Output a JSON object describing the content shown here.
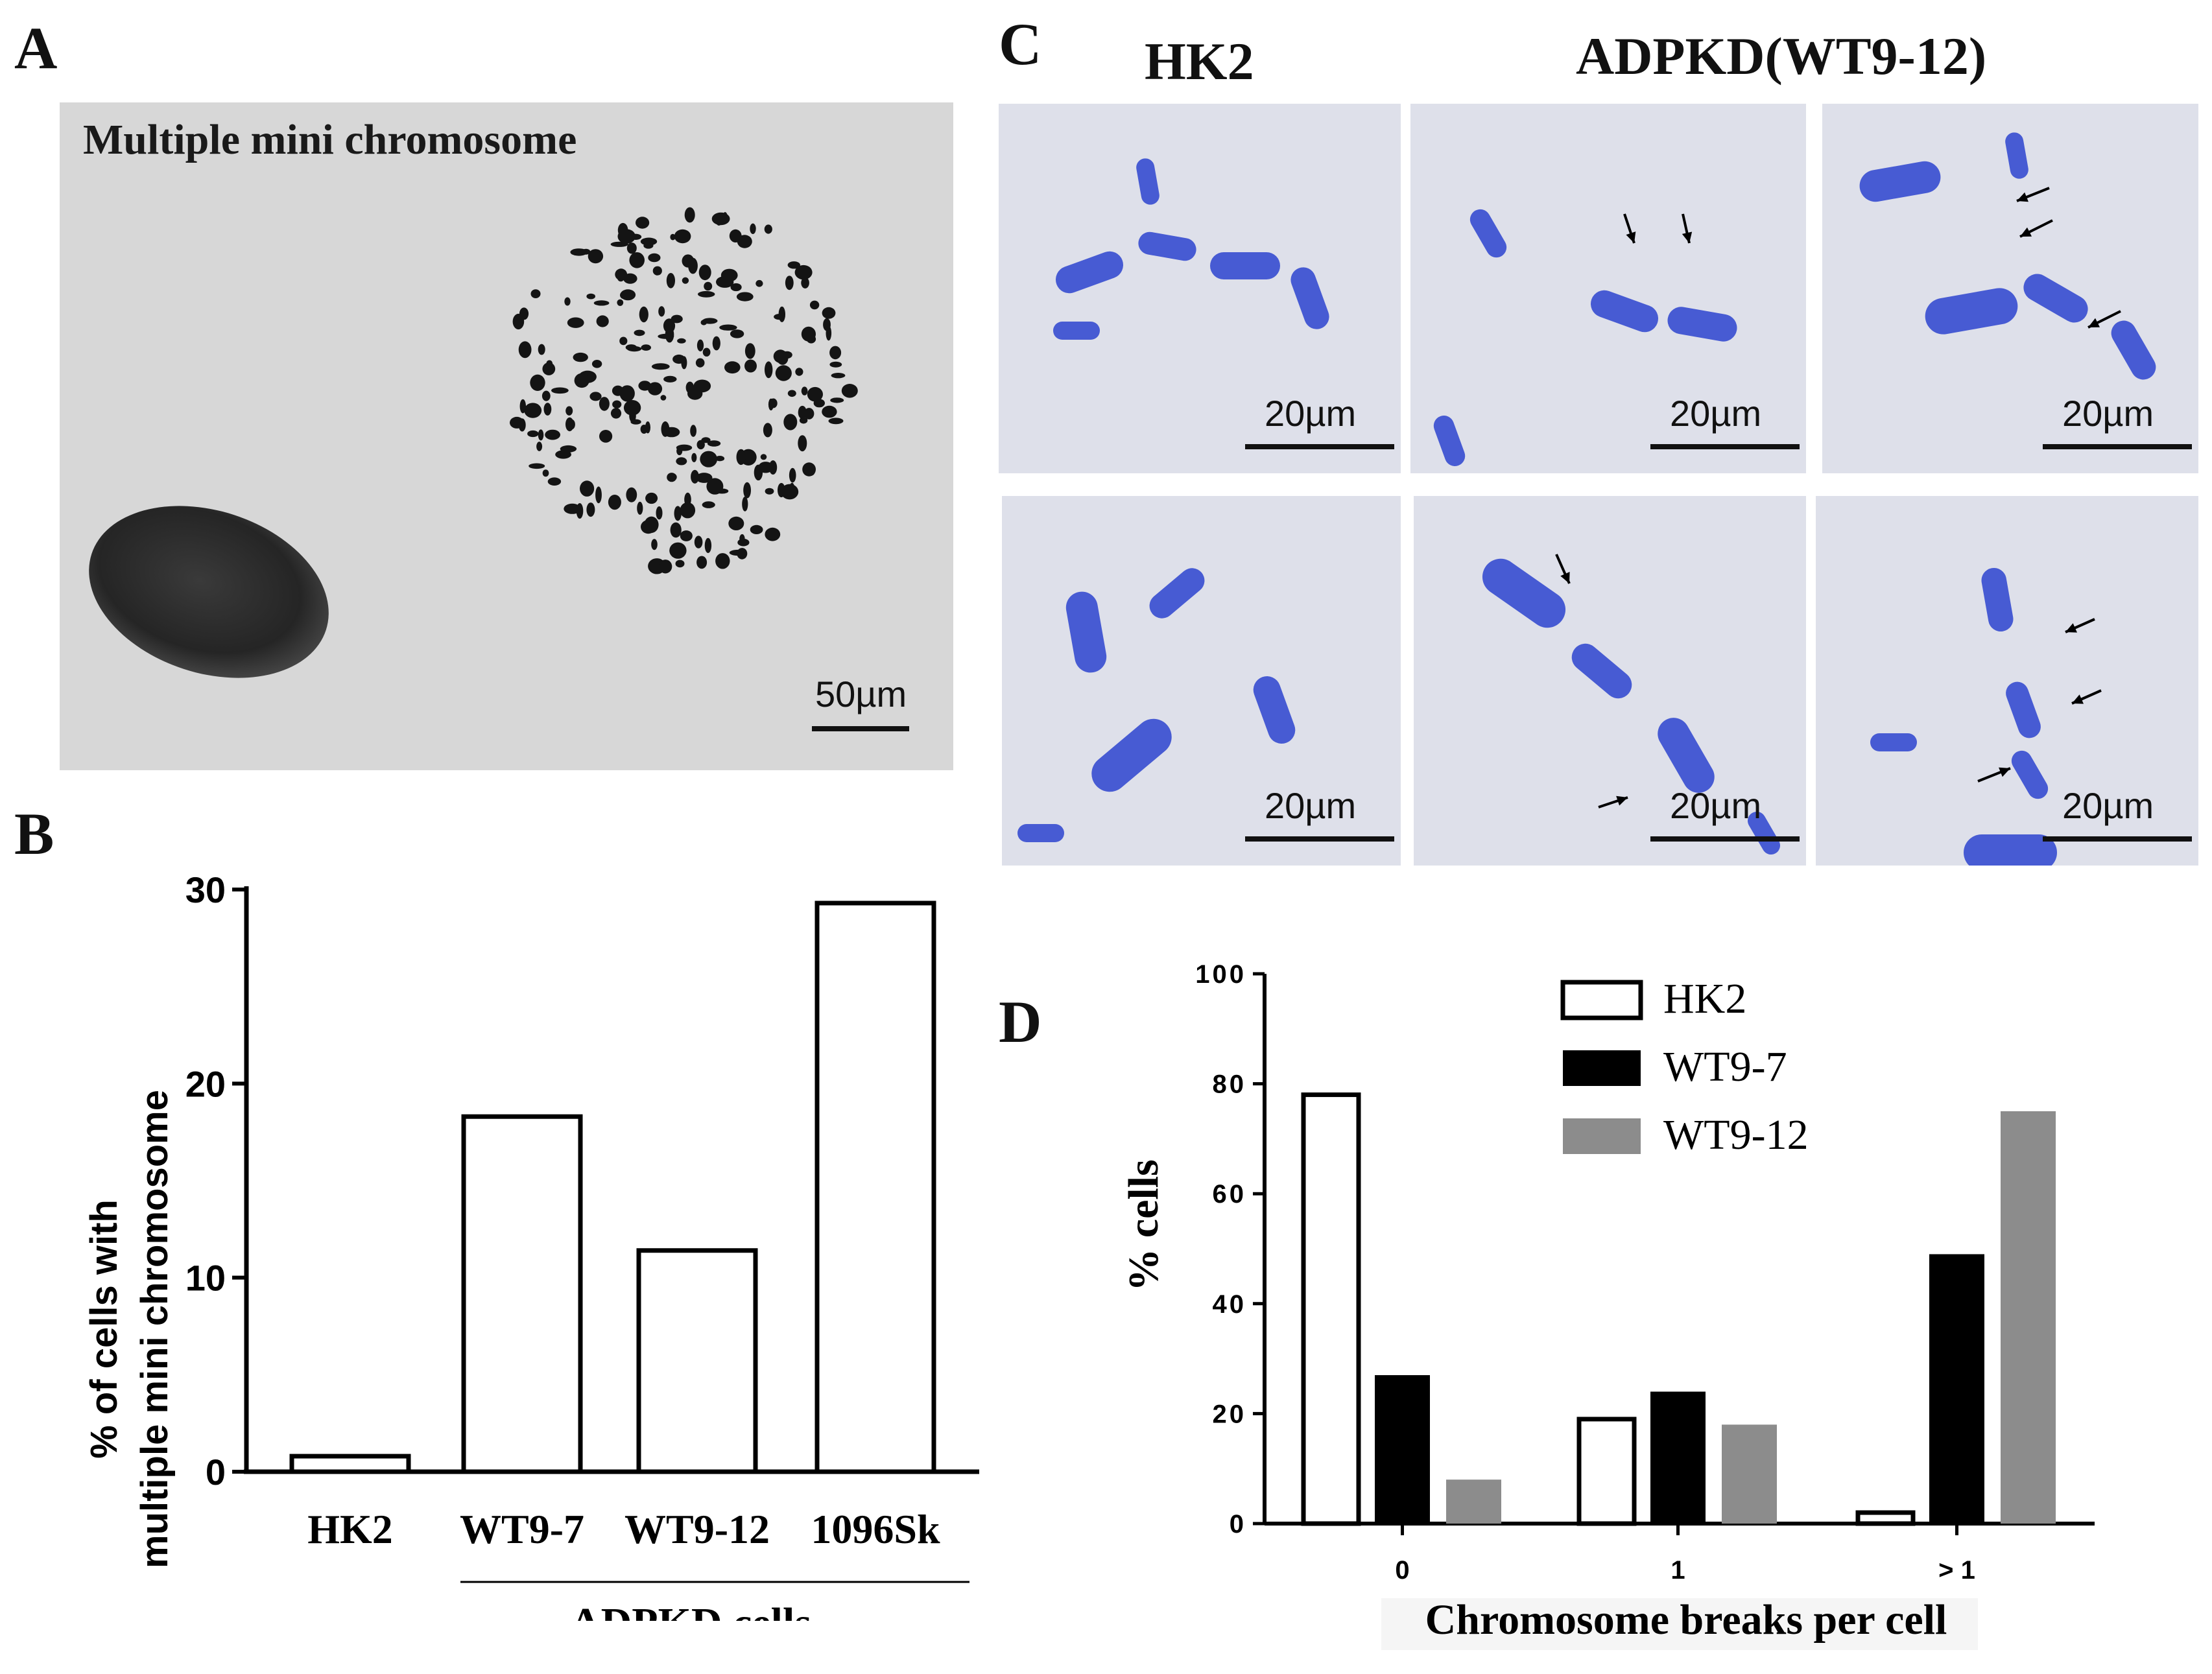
{
  "panel_labels": {
    "a": "A",
    "b": "B",
    "c": "C",
    "d": "D"
  },
  "panel_a": {
    "caption": "Multiple mini chromosome",
    "scale_bar": "50µm",
    "colors": {
      "background": "#d7d7d7",
      "nucleus": "#2b2b2b",
      "chromosome": "#141414"
    }
  },
  "panel_c": {
    "col_titles": [
      "HK2",
      "ADPKD(WT9-12)"
    ],
    "scale_bar": "20µm",
    "colors": {
      "background": "#dee0ea",
      "chromosome": "#3a4fd0"
    }
  },
  "chart_data": [
    {
      "type": "bar",
      "panel": "B",
      "categories": [
        "HK2",
        "WT9-7",
        "WT9-12",
        "1096Sk"
      ],
      "values": [
        0.8,
        18.3,
        11.4,
        29.3
      ],
      "ylabel_line1": "% of cells with",
      "ylabel_line2": "multiple mini chromosome",
      "ylim": [
        0,
        30
      ],
      "yticks": [
        "0",
        "10",
        "20",
        "30"
      ],
      "group_label": "ADPKD cells",
      "bar_fill": "#ffffff",
      "bar_stroke": "#000000"
    },
    {
      "type": "bar",
      "panel": "D",
      "categories": [
        "0",
        "1",
        "> 1"
      ],
      "series": [
        {
          "name": "HK2",
          "values": [
            78,
            19,
            2
          ],
          "color": "#ffffff"
        },
        {
          "name": "WT9-7",
          "values": [
            27,
            24,
            49
          ],
          "color": "#000000"
        },
        {
          "name": "WT9-12",
          "values": [
            8,
            18,
            75
          ],
          "color": "#8c8c8c"
        }
      ],
      "ylabel": "% cells",
      "xlabel": "Chromosome breaks per cell",
      "ylim": [
        0,
        100
      ],
      "yticks": [
        "0",
        "20",
        "40",
        "60",
        "80",
        "100"
      ],
      "legend": "top-right"
    }
  ]
}
